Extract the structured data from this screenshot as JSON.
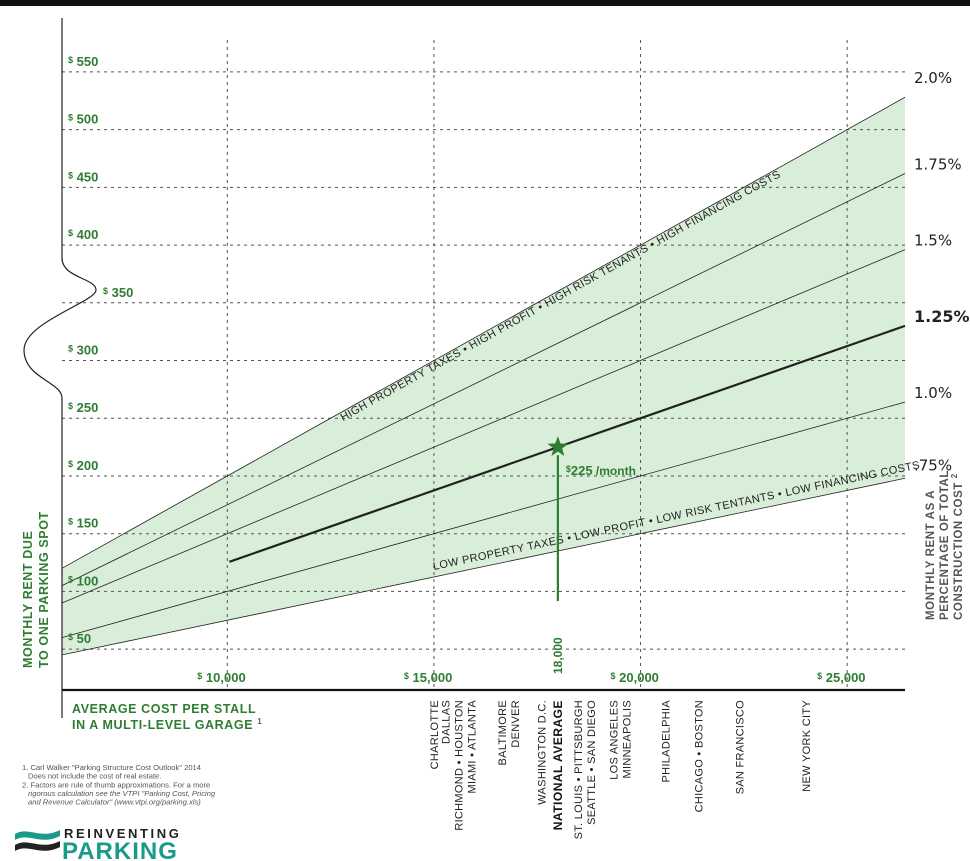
{
  "chart_data": {
    "type": "line",
    "x_axis": {
      "title_line1": "AVERAGE COST PER STALL",
      "title_line2": "IN A MULTI-LEVEL GARAGE",
      "title_footnote": "1",
      "range": [
        7500,
        26500
      ],
      "ticks": [
        {
          "value": 10000,
          "label": "10,000"
        },
        {
          "value": 15000,
          "label": "15,000"
        },
        {
          "value": 20000,
          "label": "20,000"
        },
        {
          "value": 25000,
          "label": "25,000"
        }
      ],
      "tick_prefix": "$"
    },
    "y_axis": {
      "title_line1": "MONTHLY RENT DUE",
      "title_line2": "TO ONE PARKING SPOT",
      "range": [
        25,
        575
      ],
      "ticks": [
        {
          "value": 50,
          "label": "50"
        },
        {
          "value": 100,
          "label": "100"
        },
        {
          "value": 150,
          "label": "150"
        },
        {
          "value": 200,
          "label": "200"
        },
        {
          "value": 250,
          "label": "250"
        },
        {
          "value": 300,
          "label": "300"
        },
        {
          "value": 350,
          "label": "350"
        },
        {
          "value": 400,
          "label": "400"
        },
        {
          "value": 450,
          "label": "450"
        },
        {
          "value": 500,
          "label": "500"
        },
        {
          "value": 550,
          "label": "550"
        }
      ],
      "tick_prefix": "$"
    },
    "right_axis": {
      "title_line1": "MONTHLY RENT AS A",
      "title_line2": "PERCENTAGE OF TOTAL",
      "title_line3": "CONSTRUCTION COST",
      "title_footnote": "2"
    },
    "series": [
      {
        "name": ".75%",
        "rate": 0.0075,
        "bold": false
      },
      {
        "name": "1.0%",
        "rate": 0.01,
        "bold": false
      },
      {
        "name": "1.25%",
        "rate": 0.0125,
        "bold": true
      },
      {
        "name": "1.5%",
        "rate": 0.015,
        "bold": false
      },
      {
        "name": "1.75%",
        "rate": 0.0175,
        "bold": false
      },
      {
        "name": "2.0%",
        "rate": 0.02,
        "bold": false
      }
    ],
    "band": {
      "low_rate": 0.0075,
      "high_rate": 0.02,
      "high_label": "HIGH PROPERTY TAXES • HIGH PROFIT • HIGH RISK TENANTS • HIGH FINANCING COSTS",
      "low_label": "LOW PROPERTY TAXES • LOW PROFIT • LOW RISK TENTANTS • LOW FINANCING COSTS",
      "color": "#d9eed9"
    },
    "national_average": {
      "x": 18000,
      "y": 225,
      "x_label": "18,000",
      "value_label": "225",
      "value_prefix": "$",
      "value_unit": "/month",
      "city_label": "NATIONAL AVERAGE"
    },
    "cities": [
      {
        "x": 15000,
        "lines": [
          "CHARLOTTE"
        ]
      },
      {
        "x": 15600,
        "lines": [
          "DALLAS",
          "RICHMOND • HOUSTON",
          "MIAMI • ATLANTA"
        ]
      },
      {
        "x": 16800,
        "lines": [
          "BALTIMORE",
          "DENVER"
        ]
      },
      {
        "x": 17600,
        "lines": [
          "WASHINGTON D.C."
        ]
      },
      {
        "x": 18650,
        "lines": [
          "ST. LOUIS • PITTSBURGH",
          "SEATTLE • SAN DIEGO"
        ]
      },
      {
        "x": 19500,
        "lines": [
          "LOS ANGELES",
          "MINNEAPOLIS"
        ]
      },
      {
        "x": 20600,
        "lines": [
          "PHILADELPHIA"
        ]
      },
      {
        "x": 21400,
        "lines": [
          "CHICAGO • BOSTON"
        ]
      },
      {
        "x": 22400,
        "lines": [
          "SAN FRANCISCO"
        ]
      },
      {
        "x": 24000,
        "lines": [
          "NEW YORK CITY"
        ]
      }
    ],
    "grid": true,
    "colors": {
      "accent": "#2e7d32",
      "line": "#222222",
      "grid": "#555555"
    }
  },
  "notes": [
    {
      "lines": [
        "Carl Walker \"Parking Structure Cost Outlook\" 2014",
        "Does not include the cost of real estate."
      ]
    },
    {
      "lines": [
        "Factors are rule of thumb approximations. For a more",
        "rigorous calculation see the VTPI \"Parking Cost, Pricing",
        "and Revenue Calculator\" (www.vtpi.org/parking.xls)"
      ]
    }
  ],
  "logo": {
    "line1": "REINVENTING",
    "line2": "PARKING"
  }
}
